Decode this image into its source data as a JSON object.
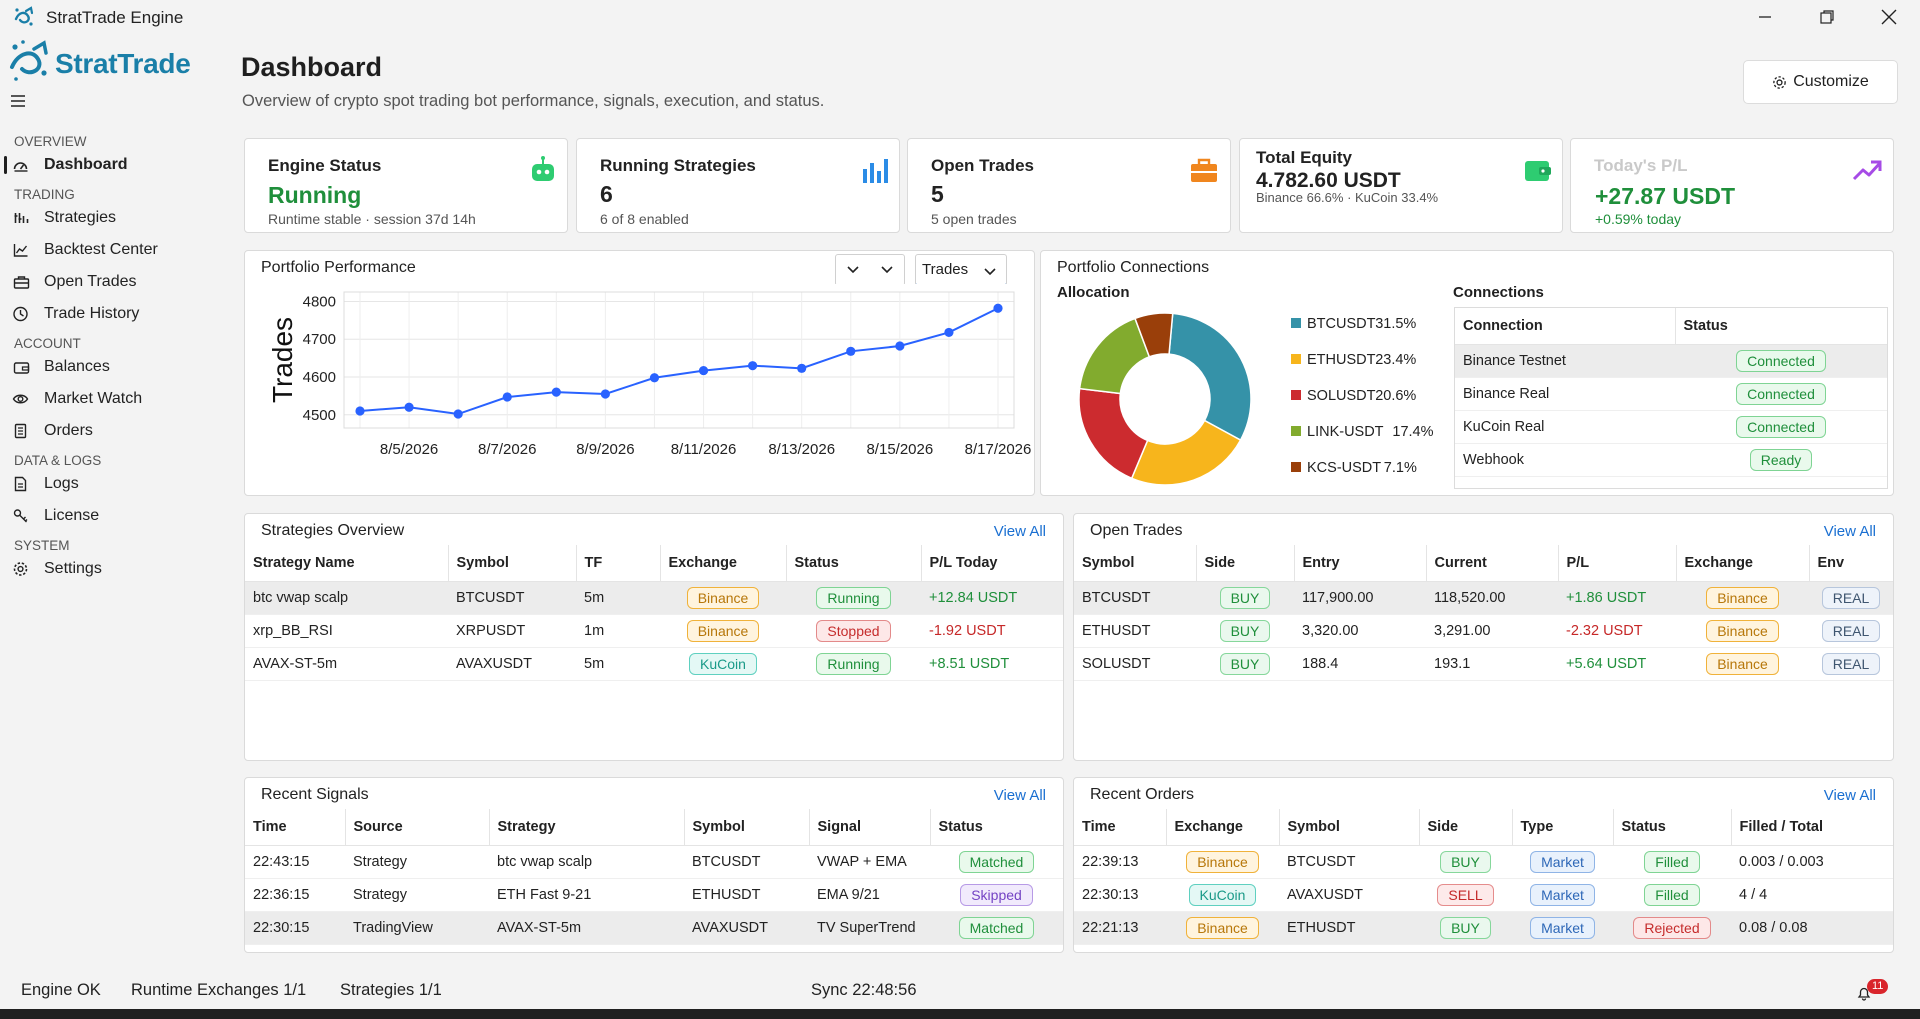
{
  "window": {
    "title": "StratTrade Engine"
  },
  "brand": {
    "name": "StratTrade"
  },
  "sidebar": {
    "sections": [
      {
        "label": "OVERVIEW",
        "items": [
          {
            "label": "Dashboard",
            "icon": "dashboard-icon",
            "active": true
          }
        ]
      },
      {
        "label": "TRADING",
        "items": [
          {
            "label": "Strategies",
            "icon": "strategies-icon"
          },
          {
            "label": "Backtest Center",
            "icon": "chart-line-icon"
          },
          {
            "label": "Open Trades",
            "icon": "briefcase-icon"
          },
          {
            "label": "Trade History",
            "icon": "clock-icon"
          }
        ]
      },
      {
        "label": "ACCOUNT",
        "items": [
          {
            "label": "Balances",
            "icon": "wallet-icon"
          },
          {
            "label": "Market Watch",
            "icon": "eye-icon"
          },
          {
            "label": "Orders",
            "icon": "document-icon"
          }
        ]
      },
      {
        "label": "DATA & LOGS",
        "items": [
          {
            "label": "Logs",
            "icon": "log-icon"
          },
          {
            "label": "License",
            "icon": "key-icon"
          }
        ]
      },
      {
        "label": "SYSTEM",
        "items": [
          {
            "label": "Settings",
            "icon": "gear-icon"
          }
        ]
      }
    ]
  },
  "header": {
    "title": "Dashboard",
    "subtitle": "Overview of crypto spot trading bot performance, signals, execution, and status.",
    "customize_label": "Customize"
  },
  "kpis": {
    "engine": {
      "title": "Engine Status",
      "value": "Running",
      "sub": "Runtime stable · session 37d 14h"
    },
    "strategies": {
      "title": "Running Strategies",
      "value": "6",
      "sub": "6 of 8 enabled"
    },
    "trades": {
      "title": "Open Trades",
      "value": "5",
      "sub": "5 open trades"
    },
    "equity": {
      "title": "Total Equity",
      "value": "4.782.60 USDT",
      "sub": "Binance 66.6% · KuCoin 33.4%"
    },
    "pl": {
      "title": "Today's P/L",
      "value": "+27.87 USDT",
      "sub": "+0.59% today"
    }
  },
  "performance": {
    "title": "Portfolio Performance",
    "metric_select": "Trades",
    "chart_data": {
      "type": "line",
      "ylabel": "Trades",
      "x": [
        "8/4/2026",
        "8/5/2026",
        "8/6/2026",
        "8/7/2026",
        "8/8/2026",
        "8/9/2026",
        "8/10/2026",
        "8/11/2026",
        "8/12/2026",
        "8/13/2026",
        "8/14/2026",
        "8/15/2026",
        "8/16/2026",
        "8/17/2026"
      ],
      "xticks": [
        "8/5/2026",
        "8/7/2026",
        "8/9/2026",
        "8/11/2026",
        "8/13/2026",
        "8/15/2026",
        "8/17/2026"
      ],
      "values": [
        4510,
        4520,
        4502,
        4547,
        4560,
        4555,
        4598,
        4617,
        4630,
        4623,
        4668,
        4682,
        4718,
        4782
      ],
      "yticks": [
        4500,
        4600,
        4700,
        4800
      ],
      "ylim": [
        4465,
        4825
      ],
      "color": "#2962ff",
      "grid": true
    }
  },
  "connections": {
    "title": "Portfolio Connections",
    "allocation_label": "Allocation",
    "connections_label": "Connections",
    "allocation_chart": {
      "type": "pie",
      "slices": [
        {
          "label": "BTCUSDT",
          "pct": "31.5%",
          "value": 31.5,
          "color": "#3592a8"
        },
        {
          "label": "ETHUSDT",
          "pct": "23.4%",
          "value": 23.4,
          "color": "#f7b51c"
        },
        {
          "label": "SOLUSDT",
          "pct": "20.6%",
          "value": 20.6,
          "color": "#cc2b2f"
        },
        {
          "label": "LINK-USDT",
          "pct": "17.4%",
          "value": 17.4,
          "color": "#82ab2e"
        },
        {
          "label": "KCS-USDT",
          "pct": "7.1%",
          "value": 7.1,
          "color": "#9a3f0a"
        }
      ]
    },
    "columns": [
      "Connection",
      "Status"
    ],
    "rows": [
      {
        "name": "Binance Testnet",
        "status": "Connected"
      },
      {
        "name": "Binance Real",
        "status": "Connected"
      },
      {
        "name": "KuCoin Real",
        "status": "Connected"
      },
      {
        "name": "Webhook",
        "status": "Ready"
      }
    ]
  },
  "strategies": {
    "title": "Strategies Overview",
    "view_all": "View All",
    "columns": [
      "Strategy Name",
      "Symbol",
      "TF",
      "Exchange",
      "Status",
      "P/L Today"
    ],
    "rows": [
      {
        "name": "btc vwap scalp",
        "symbol": "BTCUSDT",
        "tf": "5m",
        "exchange": "Binance",
        "status": "Running",
        "pl": "+12.84 USDT"
      },
      {
        "name": "xrp_BB_RSI",
        "symbol": "XRPUSDT",
        "tf": "1m",
        "exchange": "Binance",
        "status": "Stopped",
        "pl": "-1.92 USDT"
      },
      {
        "name": "AVAX-ST-5m",
        "symbol": "AVAXUSDT",
        "tf": "5m",
        "exchange": "KuCoin",
        "status": "Running",
        "pl": "+8.51 USDT"
      }
    ]
  },
  "open_trades": {
    "title": "Open Trades",
    "view_all": "View All",
    "columns": [
      "Symbol",
      "Side",
      "Entry",
      "Current",
      "P/L",
      "Exchange",
      "Env"
    ],
    "rows": [
      {
        "symbol": "BTCUSDT",
        "side": "BUY",
        "entry": "117,900.00",
        "current": "118,520.00",
        "pl": "+1.86 USDT",
        "exchange": "Binance",
        "env": "REAL"
      },
      {
        "symbol": "ETHUSDT",
        "side": "BUY",
        "entry": "3,320.00",
        "current": "3,291.00",
        "pl": "-2.32 USDT",
        "exchange": "Binance",
        "env": "REAL"
      },
      {
        "symbol": "SOLUSDT",
        "side": "BUY",
        "entry": "188.4",
        "current": "193.1",
        "pl": "+5.64 USDT",
        "exchange": "Binance",
        "env": "REAL"
      }
    ]
  },
  "signals": {
    "title": "Recent Signals",
    "view_all": "View All",
    "columns": [
      "Time",
      "Source",
      "Strategy",
      "Symbol",
      "Signal",
      "Status"
    ],
    "rows": [
      {
        "time": "22:43:15",
        "source": "Strategy",
        "strategy": "btc vwap scalp",
        "symbol": "BTCUSDT",
        "signal": "VWAP + EMA",
        "status": "Matched"
      },
      {
        "time": "22:36:15",
        "source": "Strategy",
        "strategy": "ETH Fast 9-21",
        "symbol": "ETHUSDT",
        "signal": "EMA 9/21",
        "status": "Skipped"
      },
      {
        "time": "22:30:15",
        "source": "TradingView",
        "strategy": "AVAX-ST-5m",
        "symbol": "AVAXUSDT",
        "signal": "TV SuperTrend",
        "status": "Matched"
      }
    ]
  },
  "orders": {
    "title": "Recent Orders",
    "view_all": "View All",
    "columns": [
      "Time",
      "Exchange",
      "Symbol",
      "Side",
      "Type",
      "Status",
      "Filled / Total"
    ],
    "rows": [
      {
        "time": "22:39:13",
        "exchange": "Binance",
        "symbol": "BTCUSDT",
        "side": "BUY",
        "type": "Market",
        "status": "Filled",
        "filled": "0.003 / 0.003"
      },
      {
        "time": "22:30:13",
        "exchange": "KuCoin",
        "symbol": "AVAXUSDT",
        "side": "SELL",
        "type": "Market",
        "status": "Filled",
        "filled": "4 / 4"
      },
      {
        "time": "22:21:13",
        "exchange": "Binance",
        "symbol": "ETHUSDT",
        "side": "BUY",
        "type": "Market",
        "status": "Rejected",
        "filled": "0.08 / 0.08"
      }
    ]
  },
  "statusbar": {
    "engine": "Engine OK",
    "exchanges": "Runtime Exchanges 1/1",
    "strategies": "Strategies 1/1",
    "sync": "Sync 22:48:56",
    "notifications": "11"
  }
}
